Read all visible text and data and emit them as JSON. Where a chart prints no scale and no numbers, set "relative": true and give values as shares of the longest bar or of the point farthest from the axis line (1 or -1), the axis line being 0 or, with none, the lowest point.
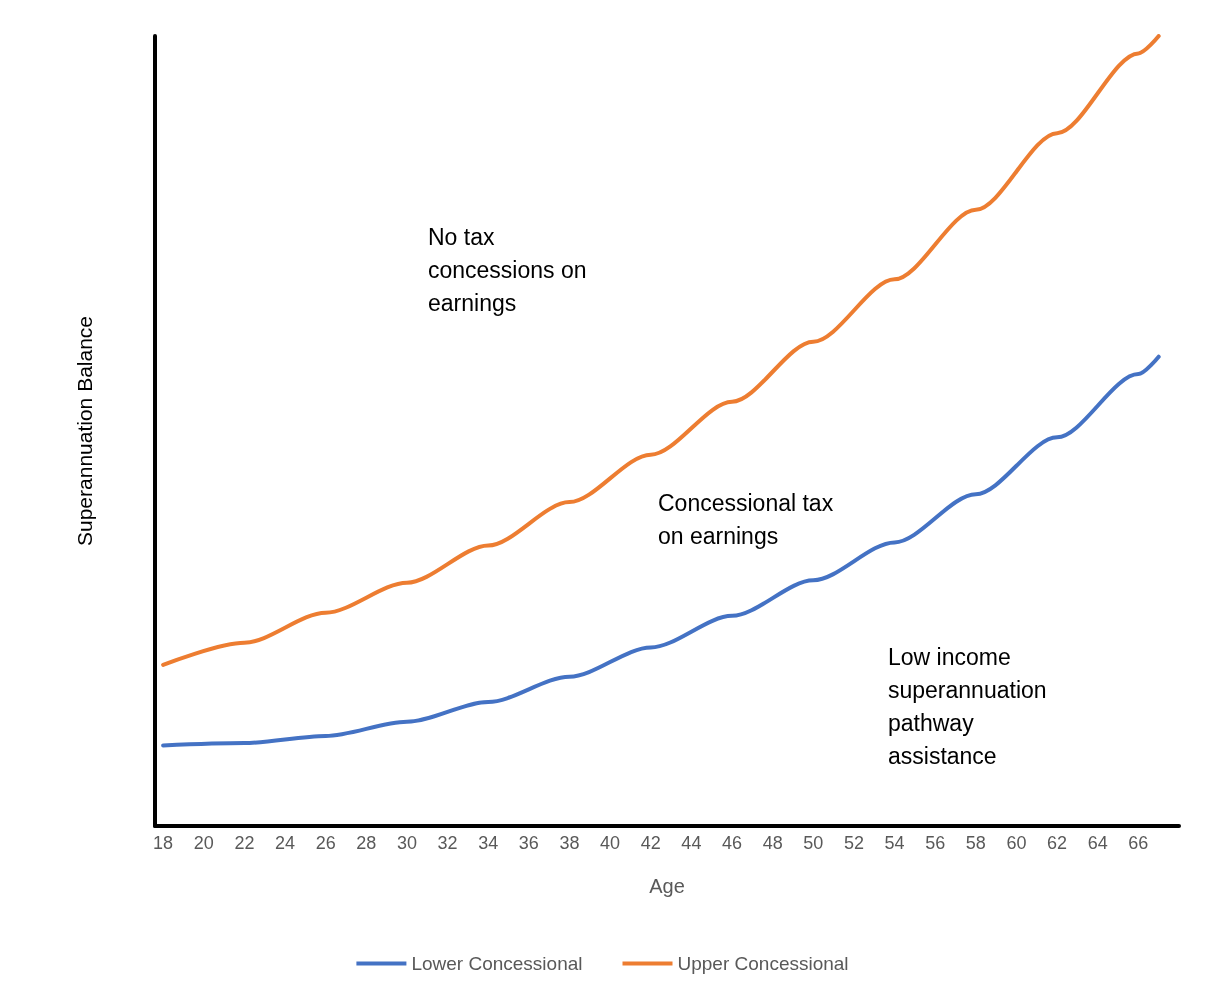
{
  "chart_data": {
    "type": "line",
    "relative": true,
    "xlabel": "Age",
    "ylabel": "Superannuation Balance",
    "xlim": [
      17.6,
      68
    ],
    "xticks": [
      18,
      20,
      22,
      24,
      26,
      28,
      30,
      32,
      34,
      36,
      38,
      40,
      42,
      44,
      46,
      48,
      50,
      52,
      54,
      56,
      58,
      60,
      62,
      64,
      66
    ],
    "series": [
      {
        "name": "Lower Concessional",
        "color": "#4472c4",
        "x": [
          18,
          22,
          26,
          30,
          34,
          38,
          42,
          46,
          50,
          54,
          58,
          62,
          66,
          67
        ],
        "values": [
          0.102,
          0.105,
          0.114,
          0.132,
          0.157,
          0.189,
          0.226,
          0.266,
          0.311,
          0.359,
          0.42,
          0.492,
          0.572,
          0.594
        ]
      },
      {
        "name": "Upper Concessional",
        "color": "#ed7d31",
        "x": [
          18,
          22,
          26,
          30,
          34,
          38,
          42,
          46,
          50,
          54,
          58,
          62,
          66,
          67
        ],
        "values": [
          0.204,
          0.232,
          0.27,
          0.308,
          0.355,
          0.41,
          0.47,
          0.537,
          0.613,
          0.692,
          0.78,
          0.877,
          0.978,
          1
        ]
      }
    ],
    "annotations": [
      "No tax\nconcessions on\nearnings",
      "Concessional tax\non earnings",
      "Low income\nsuperannuation\npathway\nassistance"
    ],
    "legend": "bottom",
    "grid": false,
    "marker": "none",
    "line_style": "solid"
  }
}
